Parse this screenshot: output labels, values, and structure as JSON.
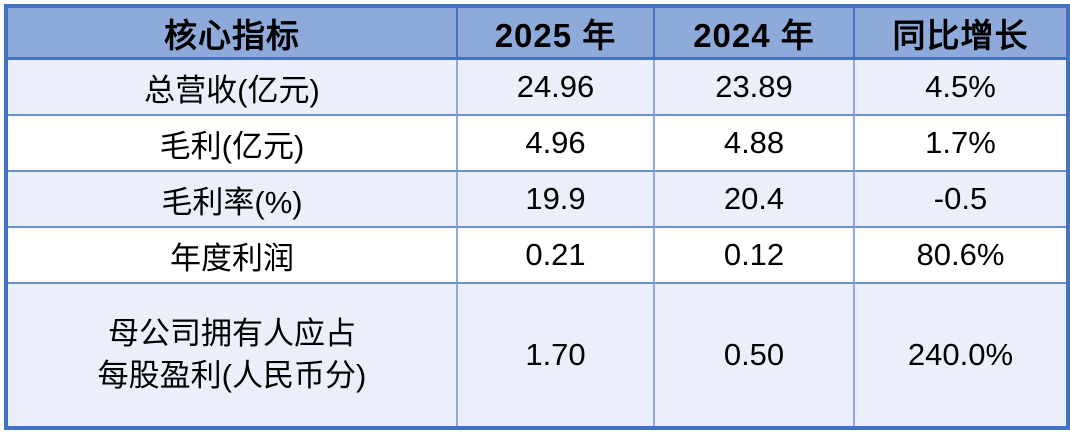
{
  "colors": {
    "outer_border": "#4472C4",
    "header_bg": "#8EAADB",
    "header_border": "#4472C4",
    "row_shade_bg": "#EBEFF9",
    "row_plain_bg": "#FFFFFF",
    "inner_vertical_border": "#8FA9DB",
    "inner_horizontal_border": "#6C8FD4",
    "text": "#000000"
  },
  "table": {
    "headers": {
      "metric": "核心指标",
      "y2025": "2025 年",
      "y2024": "2024 年",
      "yoy": "同比增长"
    },
    "rows": [
      {
        "label": "总营收(亿元)",
        "y2025": "24.96",
        "y2024": "23.89",
        "yoy": "4.5%"
      },
      {
        "label": "毛利(亿元)",
        "y2025": "4.96",
        "y2024": "4.88",
        "yoy": "1.7%"
      },
      {
        "label": "毛利率(%)",
        "y2025": "19.9",
        "y2024": "20.4",
        "yoy": "-0.5"
      },
      {
        "label": "年度利润",
        "y2025": "0.21",
        "y2024": "0.12",
        "yoy": "80.6%"
      },
      {
        "label_line1": "母公司拥有人应占",
        "label_line2": "每股盈利(人民币分)",
        "y2025": "1.70",
        "y2024": "0.50",
        "yoy": "240.0%"
      }
    ]
  },
  "chart_data": {
    "type": "table",
    "title": "核心指标",
    "columns": [
      "核心指标",
      "2025 年",
      "2024 年",
      "同比增长"
    ],
    "rows": [
      [
        "总营收(亿元)",
        "24.96",
        "23.89",
        "4.5%"
      ],
      [
        "毛利(亿元)",
        "4.96",
        "4.88",
        "1.7%"
      ],
      [
        "毛利率(%)",
        "19.9",
        "20.4",
        "-0.5"
      ],
      [
        "年度利润",
        "0.21",
        "0.12",
        "80.6%"
      ],
      [
        "母公司拥有人应占每股盈利(人民币分)",
        "1.70",
        "0.50",
        "240.0%"
      ]
    ],
    "numeric_values": {
      "y2025": [
        24.96,
        4.96,
        19.9,
        0.21,
        1.7
      ],
      "y2024": [
        23.89,
        4.88,
        20.4,
        0.12,
        0.5
      ],
      "yoy_percent": [
        4.5,
        1.7,
        -0.5,
        80.6,
        240.0
      ]
    },
    "layout_hints": {
      "header_fill": "#8EAADB",
      "zebra_striping": true,
      "all_cells_centered": true,
      "outer_border": "thick blue"
    }
  }
}
